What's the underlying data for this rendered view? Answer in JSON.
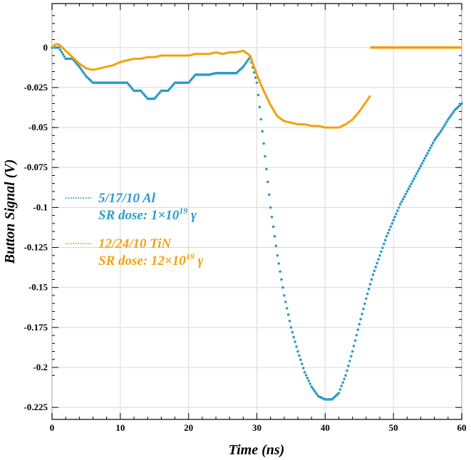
{
  "chart_data": {
    "type": "line",
    "title": "",
    "xlabel": "Time (ns)",
    "ylabel": "Button Signal (V)",
    "xlim": [
      0,
      60
    ],
    "ylim": [
      -0.2325,
      0.0275
    ],
    "grid": true,
    "legend_position": "center-left",
    "x_ticks": [
      0,
      10,
      20,
      30,
      40,
      50,
      60
    ],
    "y_ticks": [
      0,
      -0.025,
      -0.05,
      -0.075,
      -0.1,
      -0.125,
      -0.15,
      -0.175,
      -0.2,
      -0.225
    ],
    "x_tick_labels": [
      "0",
      "10",
      "20",
      "30",
      "40",
      "50",
      "60"
    ],
    "y_tick_labels": [
      "0",
      "-0.025",
      "-0.05",
      "-0.075",
      "-0.1",
      "-0.125",
      "-0.15",
      "-0.175",
      "-0.2",
      "-0.225"
    ],
    "series": [
      {
        "name": "5/17/10 Al",
        "legend_line2": "SR dose: 1×10",
        "legend_sup": "19",
        "legend_suffix": " γ",
        "color": "#2b9cc8",
        "style": "dotted",
        "x": [
          0,
          1,
          2,
          3,
          4,
          5,
          6,
          7,
          8,
          9,
          10,
          11,
          12,
          13,
          14,
          15,
          16,
          17,
          18,
          19,
          20,
          21,
          22,
          23,
          24,
          25,
          26,
          27,
          28,
          29,
          30,
          31,
          32,
          33,
          34,
          35,
          36,
          37,
          38,
          39,
          40,
          41,
          42,
          43,
          44,
          45,
          46,
          47,
          48,
          49,
          50,
          51,
          52,
          53,
          54,
          55,
          56,
          57,
          58,
          59,
          60
        ],
        "y": [
          0,
          0,
          -0.007,
          -0.007,
          -0.012,
          -0.018,
          -0.022,
          -0.022,
          -0.022,
          -0.022,
          -0.022,
          -0.022,
          -0.027,
          -0.027,
          -0.032,
          -0.032,
          -0.027,
          -0.027,
          -0.022,
          -0.022,
          -0.022,
          -0.017,
          -0.017,
          -0.017,
          -0.016,
          -0.016,
          -0.016,
          -0.016,
          -0.012,
          -0.006,
          -0.022,
          -0.06,
          -0.1,
          -0.13,
          -0.155,
          -0.175,
          -0.19,
          -0.203,
          -0.212,
          -0.218,
          -0.22,
          -0.22,
          -0.216,
          -0.205,
          -0.19,
          -0.173,
          -0.157,
          -0.142,
          -0.13,
          -0.118,
          -0.108,
          -0.098,
          -0.09,
          -0.082,
          -0.074,
          -0.066,
          -0.058,
          -0.052,
          -0.045,
          -0.039,
          -0.035
        ]
      },
      {
        "name": "12/24/10 TiN",
        "legend_line2": "SR dose: 12×10",
        "legend_sup": "19",
        "legend_suffix": " γ",
        "color": "#f5a00a",
        "style": "solid",
        "x": [
          0,
          0.5,
          1,
          2,
          3,
          4,
          5,
          6,
          7,
          8,
          9,
          10,
          11,
          12,
          13,
          14,
          15,
          16,
          17,
          18,
          19,
          20,
          21,
          22,
          23,
          24,
          25,
          26,
          27,
          28,
          29,
          30,
          31,
          32,
          33,
          34,
          35,
          36,
          37,
          38,
          39,
          40,
          41,
          42,
          43,
          44,
          45,
          46,
          46.6
        ],
        "y": [
          0,
          0.002,
          0.002,
          -0.002,
          -0.006,
          -0.01,
          -0.013,
          -0.014,
          -0.013,
          -0.012,
          -0.011,
          -0.009,
          -0.008,
          -0.007,
          -0.007,
          -0.006,
          -0.006,
          -0.005,
          -0.005,
          -0.005,
          -0.005,
          -0.005,
          -0.004,
          -0.004,
          -0.004,
          -0.003,
          -0.004,
          -0.003,
          -0.003,
          -0.002,
          -0.005,
          -0.017,
          -0.027,
          -0.036,
          -0.043,
          -0.046,
          -0.047,
          -0.048,
          -0.048,
          -0.049,
          -0.049,
          -0.05,
          -0.05,
          -0.05,
          -0.048,
          -0.045,
          -0.04,
          -0.034,
          -0.03
        ],
        "x2": [
          46.6,
          60
        ],
        "y2": [
          0,
          0
        ]
      }
    ]
  }
}
